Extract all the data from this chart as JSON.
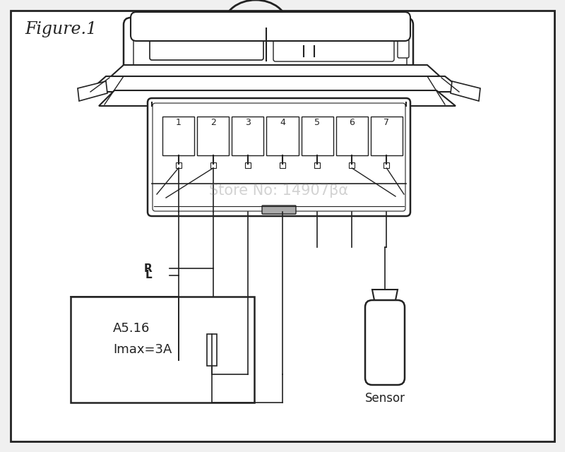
{
  "title": "Figure.1",
  "bg_color": "#f0f0f0",
  "fg_color": "#222222",
  "white": "#ffffff",
  "terminal_labels": [
    "1",
    "2",
    "3",
    "4",
    "5",
    "6",
    "7"
  ],
  "label_L": "L",
  "label_R": "R",
  "text_a516": "A5.16",
  "text_imax": "Imax=3A",
  "label_sensor": "Sensor",
  "watermark": "Store No: 14907βα"
}
